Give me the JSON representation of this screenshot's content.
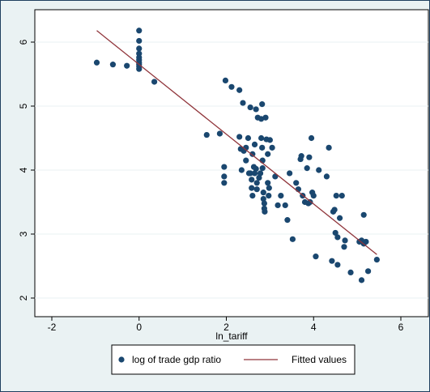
{
  "chart_data": {
    "type": "scatter",
    "xlabel": "ln_tariff",
    "ylabel": "",
    "xlim": [
      -2,
      6
    ],
    "ylim": [
      2,
      6
    ],
    "xticks": [
      -2,
      0,
      2,
      4,
      6
    ],
    "yticks": [
      2,
      3,
      4,
      5,
      6
    ],
    "grid": true,
    "legend_position": "bottom",
    "colors": {
      "points": "#1a476f",
      "fit": "#90353b",
      "background": "#eaf2f3",
      "plot": "#ffffff"
    },
    "series": [
      {
        "name": "log of trade gdp ratio",
        "kind": "scatter",
        "points": [
          [
            -0.97,
            5.68
          ],
          [
            -0.6,
            5.65
          ],
          [
            -0.28,
            5.63
          ],
          [
            0.35,
            5.38
          ],
          [
            0,
            6.18
          ],
          [
            0,
            6.02
          ],
          [
            0,
            5.9
          ],
          [
            0,
            5.82
          ],
          [
            0,
            5.76
          ],
          [
            0,
            5.72
          ],
          [
            0,
            5.68
          ],
          [
            0,
            5.65
          ],
          [
            0,
            5.62
          ],
          [
            0,
            5.58
          ],
          [
            1.55,
            4.55
          ],
          [
            1.85,
            4.57
          ],
          [
            1.95,
            4.05
          ],
          [
            1.95,
            3.9
          ],
          [
            1.95,
            3.8
          ],
          [
            1.98,
            5.4
          ],
          [
            2.12,
            5.3
          ],
          [
            2.3,
            5.25
          ],
          [
            2.3,
            4.52
          ],
          [
            2.33,
            4.33
          ],
          [
            2.38,
            5.05
          ],
          [
            2.45,
            4.35
          ],
          [
            2.4,
            4.3
          ],
          [
            2.45,
            4.15
          ],
          [
            2.5,
            4.5
          ],
          [
            2.55,
            4.98
          ],
          [
            2.55,
            3.95
          ],
          [
            2.58,
            3.85
          ],
          [
            2.6,
            4.25
          ],
          [
            2.63,
            4.05
          ],
          [
            2.65,
            3.95
          ],
          [
            2.68,
            4.95
          ],
          [
            2.7,
            3.8
          ],
          [
            2.7,
            3.7
          ],
          [
            2.72,
            4.82
          ],
          [
            2.75,
            3.88
          ],
          [
            2.78,
            3.95
          ],
          [
            2.8,
            4.8
          ],
          [
            2.8,
            4.5
          ],
          [
            2.82,
            5.03
          ],
          [
            2.82,
            4.35
          ],
          [
            2.83,
            4.15
          ],
          [
            2.83,
            4.03
          ],
          [
            2.85,
            3.65
          ],
          [
            2.85,
            3.55
          ],
          [
            2.87,
            3.48
          ],
          [
            2.87,
            3.4
          ],
          [
            2.9,
            4.82
          ],
          [
            2.92,
            4.48
          ],
          [
            2.95,
            4.25
          ],
          [
            2.95,
            3.8
          ],
          [
            2.97,
            3.6
          ],
          [
            3.0,
            4.47
          ],
          [
            3.05,
            4.35
          ],
          [
            3.12,
            3.9
          ],
          [
            3.18,
            3.45
          ],
          [
            2.58,
            3.72
          ],
          [
            2.65,
            4.4
          ],
          [
            2.6,
            3.6
          ],
          [
            2.88,
            3.35
          ],
          [
            3.35,
            3.45
          ],
          [
            3.4,
            3.22
          ],
          [
            3.52,
            2.92
          ],
          [
            3.6,
            3.8
          ],
          [
            3.65,
            3.7
          ],
          [
            3.7,
            4.17
          ],
          [
            3.72,
            4.22
          ],
          [
            3.75,
            3.6
          ],
          [
            3.8,
            3.5
          ],
          [
            3.85,
            4.03
          ],
          [
            3.88,
            3.48
          ],
          [
            3.9,
            4.2
          ],
          [
            3.92,
            3.5
          ],
          [
            3.95,
            4.5
          ],
          [
            3.97,
            3.65
          ],
          [
            4.0,
            3.6
          ],
          [
            4.05,
            2.65
          ],
          [
            4.12,
            4.0
          ],
          [
            4.3,
            3.9
          ],
          [
            4.35,
            4.35
          ],
          [
            4.45,
            3.35
          ],
          [
            4.48,
            3.38
          ],
          [
            4.5,
            3.02
          ],
          [
            4.52,
            3.6
          ],
          [
            4.55,
            2.95
          ],
          [
            4.6,
            3.25
          ],
          [
            4.65,
            3.6
          ],
          [
            4.7,
            2.8
          ],
          [
            4.72,
            2.9
          ],
          [
            4.42,
            2.58
          ],
          [
            4.55,
            2.52
          ],
          [
            4.85,
            2.4
          ],
          [
            5.05,
            2.88
          ],
          [
            5.1,
            2.28
          ],
          [
            5.15,
            3.3
          ],
          [
            5.15,
            2.85
          ],
          [
            5.2,
            2.88
          ],
          [
            5.25,
            2.42
          ],
          [
            5.45,
            2.6
          ],
          [
            5.1,
            2.9
          ],
          [
            3.45,
            3.95
          ],
          [
            3.25,
            3.6
          ],
          [
            2.52,
            3.95
          ],
          [
            2.68,
            4.02
          ],
          [
            2.35,
            4.0
          ],
          [
            2.98,
            3.72
          ]
        ]
      },
      {
        "name": "Fitted values",
        "kind": "line",
        "points": [
          [
            -0.97,
            6.18
          ],
          [
            5.45,
            2.68
          ]
        ]
      }
    ]
  }
}
